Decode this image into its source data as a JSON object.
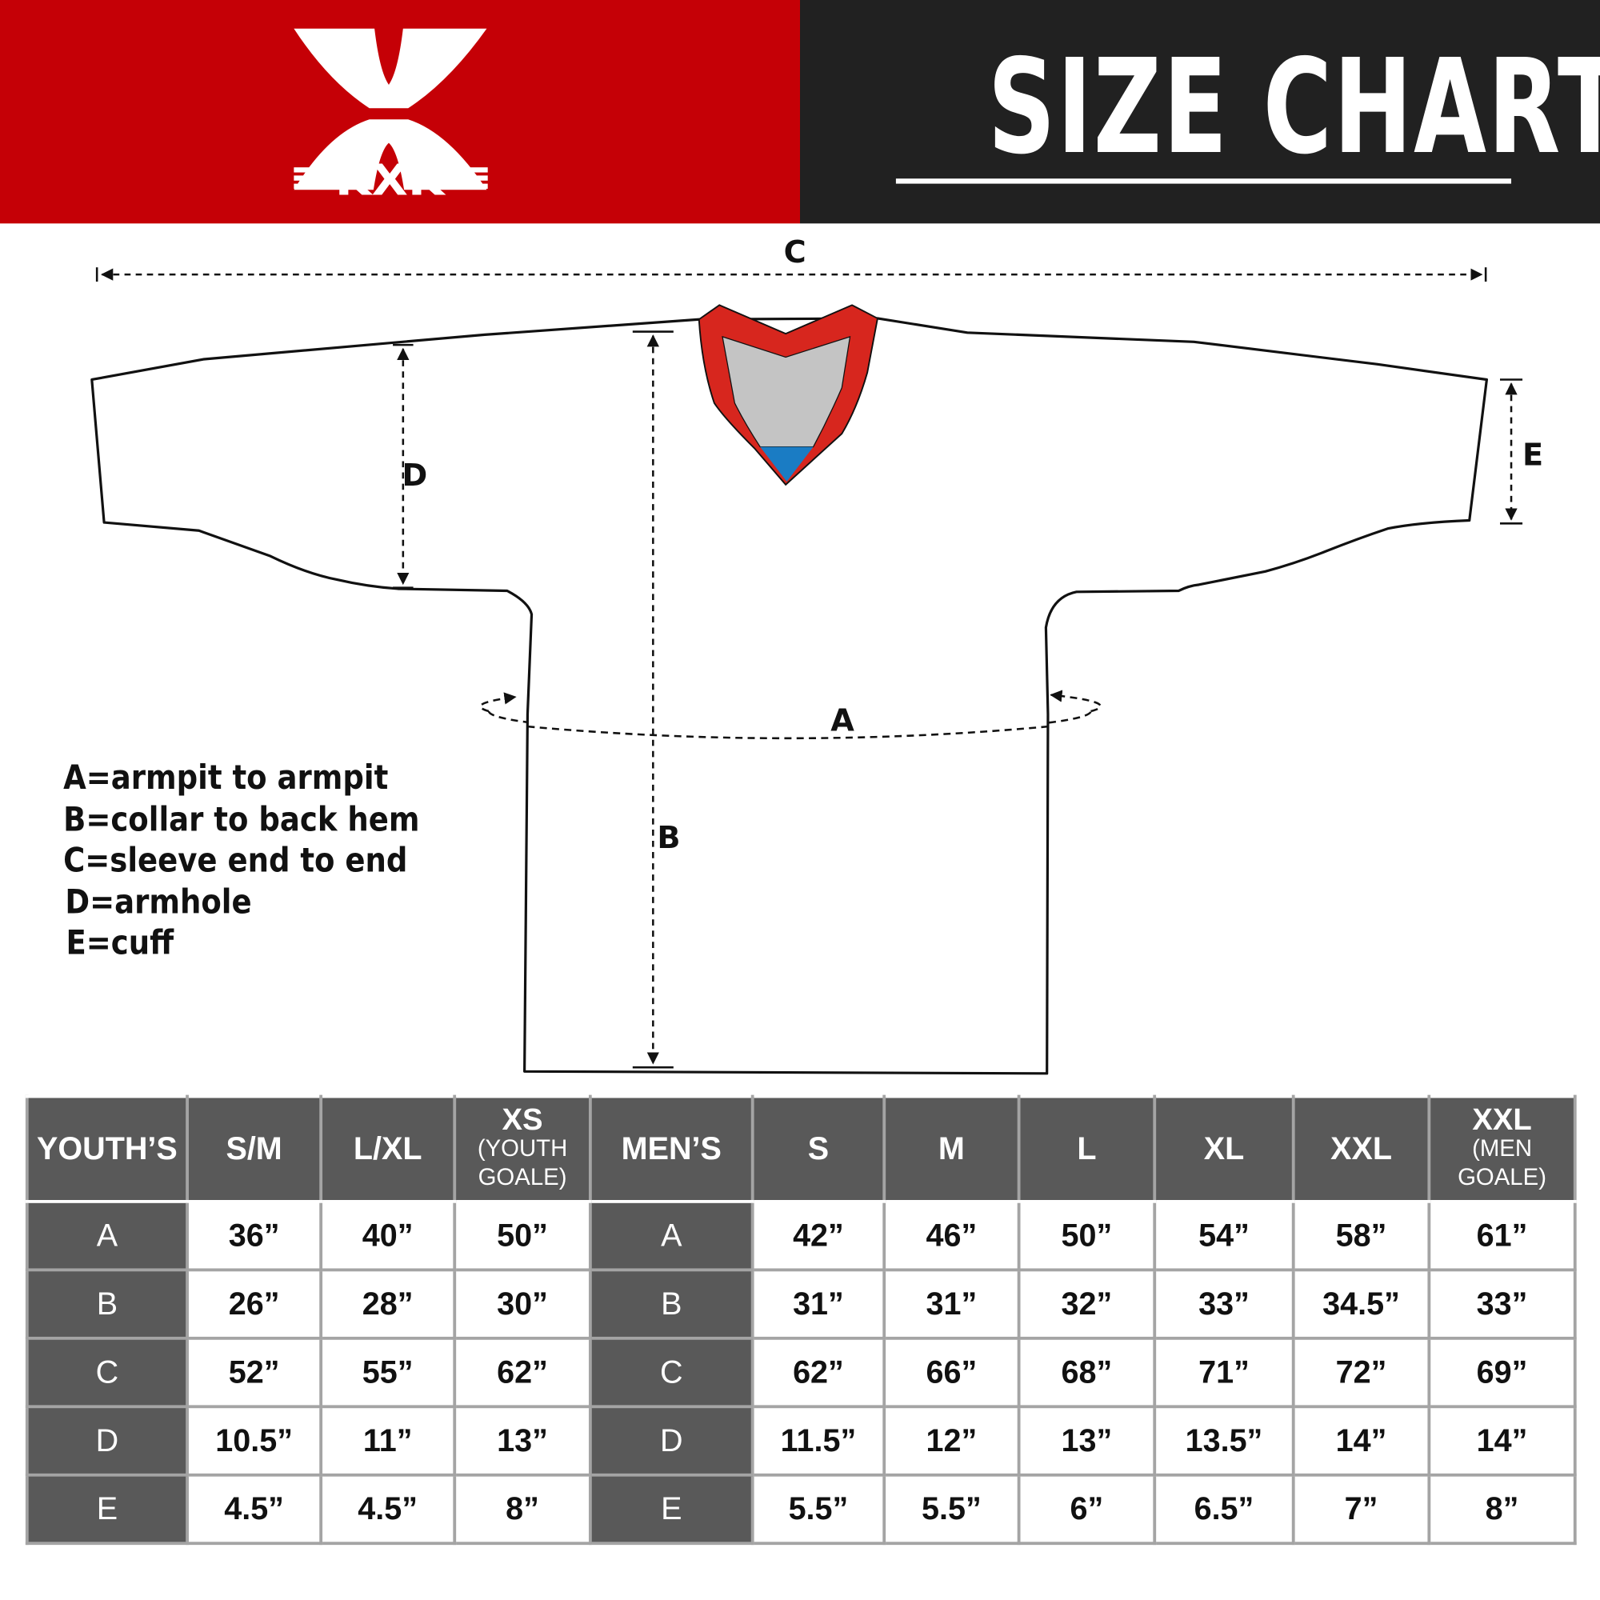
{
  "brand": {
    "name": "KXK",
    "color_red": "#c50006",
    "color_dark": "#212121"
  },
  "header": {
    "title": "SIZE CHART"
  },
  "diagram": {
    "labels": {
      "a": "A",
      "b": "B",
      "c": "C",
      "d": "D",
      "e": "E"
    },
    "legend": [
      "A=armpit to armpit",
      "B=collar to back hem",
      "C=sleeve end to end",
      "D=armhole",
      "E=cuff"
    ],
    "collar_colors": {
      "trim": "#d7261e",
      "inner": "#c4c4c4",
      "accent": "#1a7cc4"
    }
  },
  "table": {
    "youth_header": "YOUTH’S",
    "youth_sizes": [
      {
        "main": "S/M",
        "sub": ""
      },
      {
        "main": "L/XL",
        "sub": ""
      },
      {
        "main": "XS",
        "sub": "(YOUTH GOALE)"
      }
    ],
    "men_header": "MEN’S",
    "men_sizes": [
      {
        "main": "S",
        "sub": ""
      },
      {
        "main": "M",
        "sub": ""
      },
      {
        "main": "L",
        "sub": ""
      },
      {
        "main": "XL",
        "sub": ""
      },
      {
        "main": "XXL",
        "sub": ""
      },
      {
        "main": "XXL",
        "sub": "(MEN GOALE)"
      }
    ],
    "rows": [
      {
        "label": "A",
        "youth": [
          "36”",
          "40”",
          "50”"
        ],
        "men": [
          "42”",
          "46”",
          "50”",
          "54”",
          "58”",
          "61”"
        ]
      },
      {
        "label": "B",
        "youth": [
          "26”",
          "28”",
          "30”"
        ],
        "men": [
          "31”",
          "31”",
          "32”",
          "33”",
          "34.5”",
          "33”"
        ]
      },
      {
        "label": "C",
        "youth": [
          "52”",
          "55”",
          "62”"
        ],
        "men": [
          "62”",
          "66”",
          "68”",
          "71”",
          "72”",
          "69”"
        ]
      },
      {
        "label": "D",
        "youth": [
          "10.5”",
          "11”",
          "13”"
        ],
        "men": [
          "11.5”",
          "12”",
          "13”",
          "13.5”",
          "14”",
          "14”"
        ]
      },
      {
        "label": "E",
        "youth": [
          "4.5”",
          "4.5”",
          "8”"
        ],
        "men": [
          "5.5”",
          "5.5”",
          "6”",
          "6.5”",
          "7”",
          "8”"
        ]
      }
    ]
  }
}
